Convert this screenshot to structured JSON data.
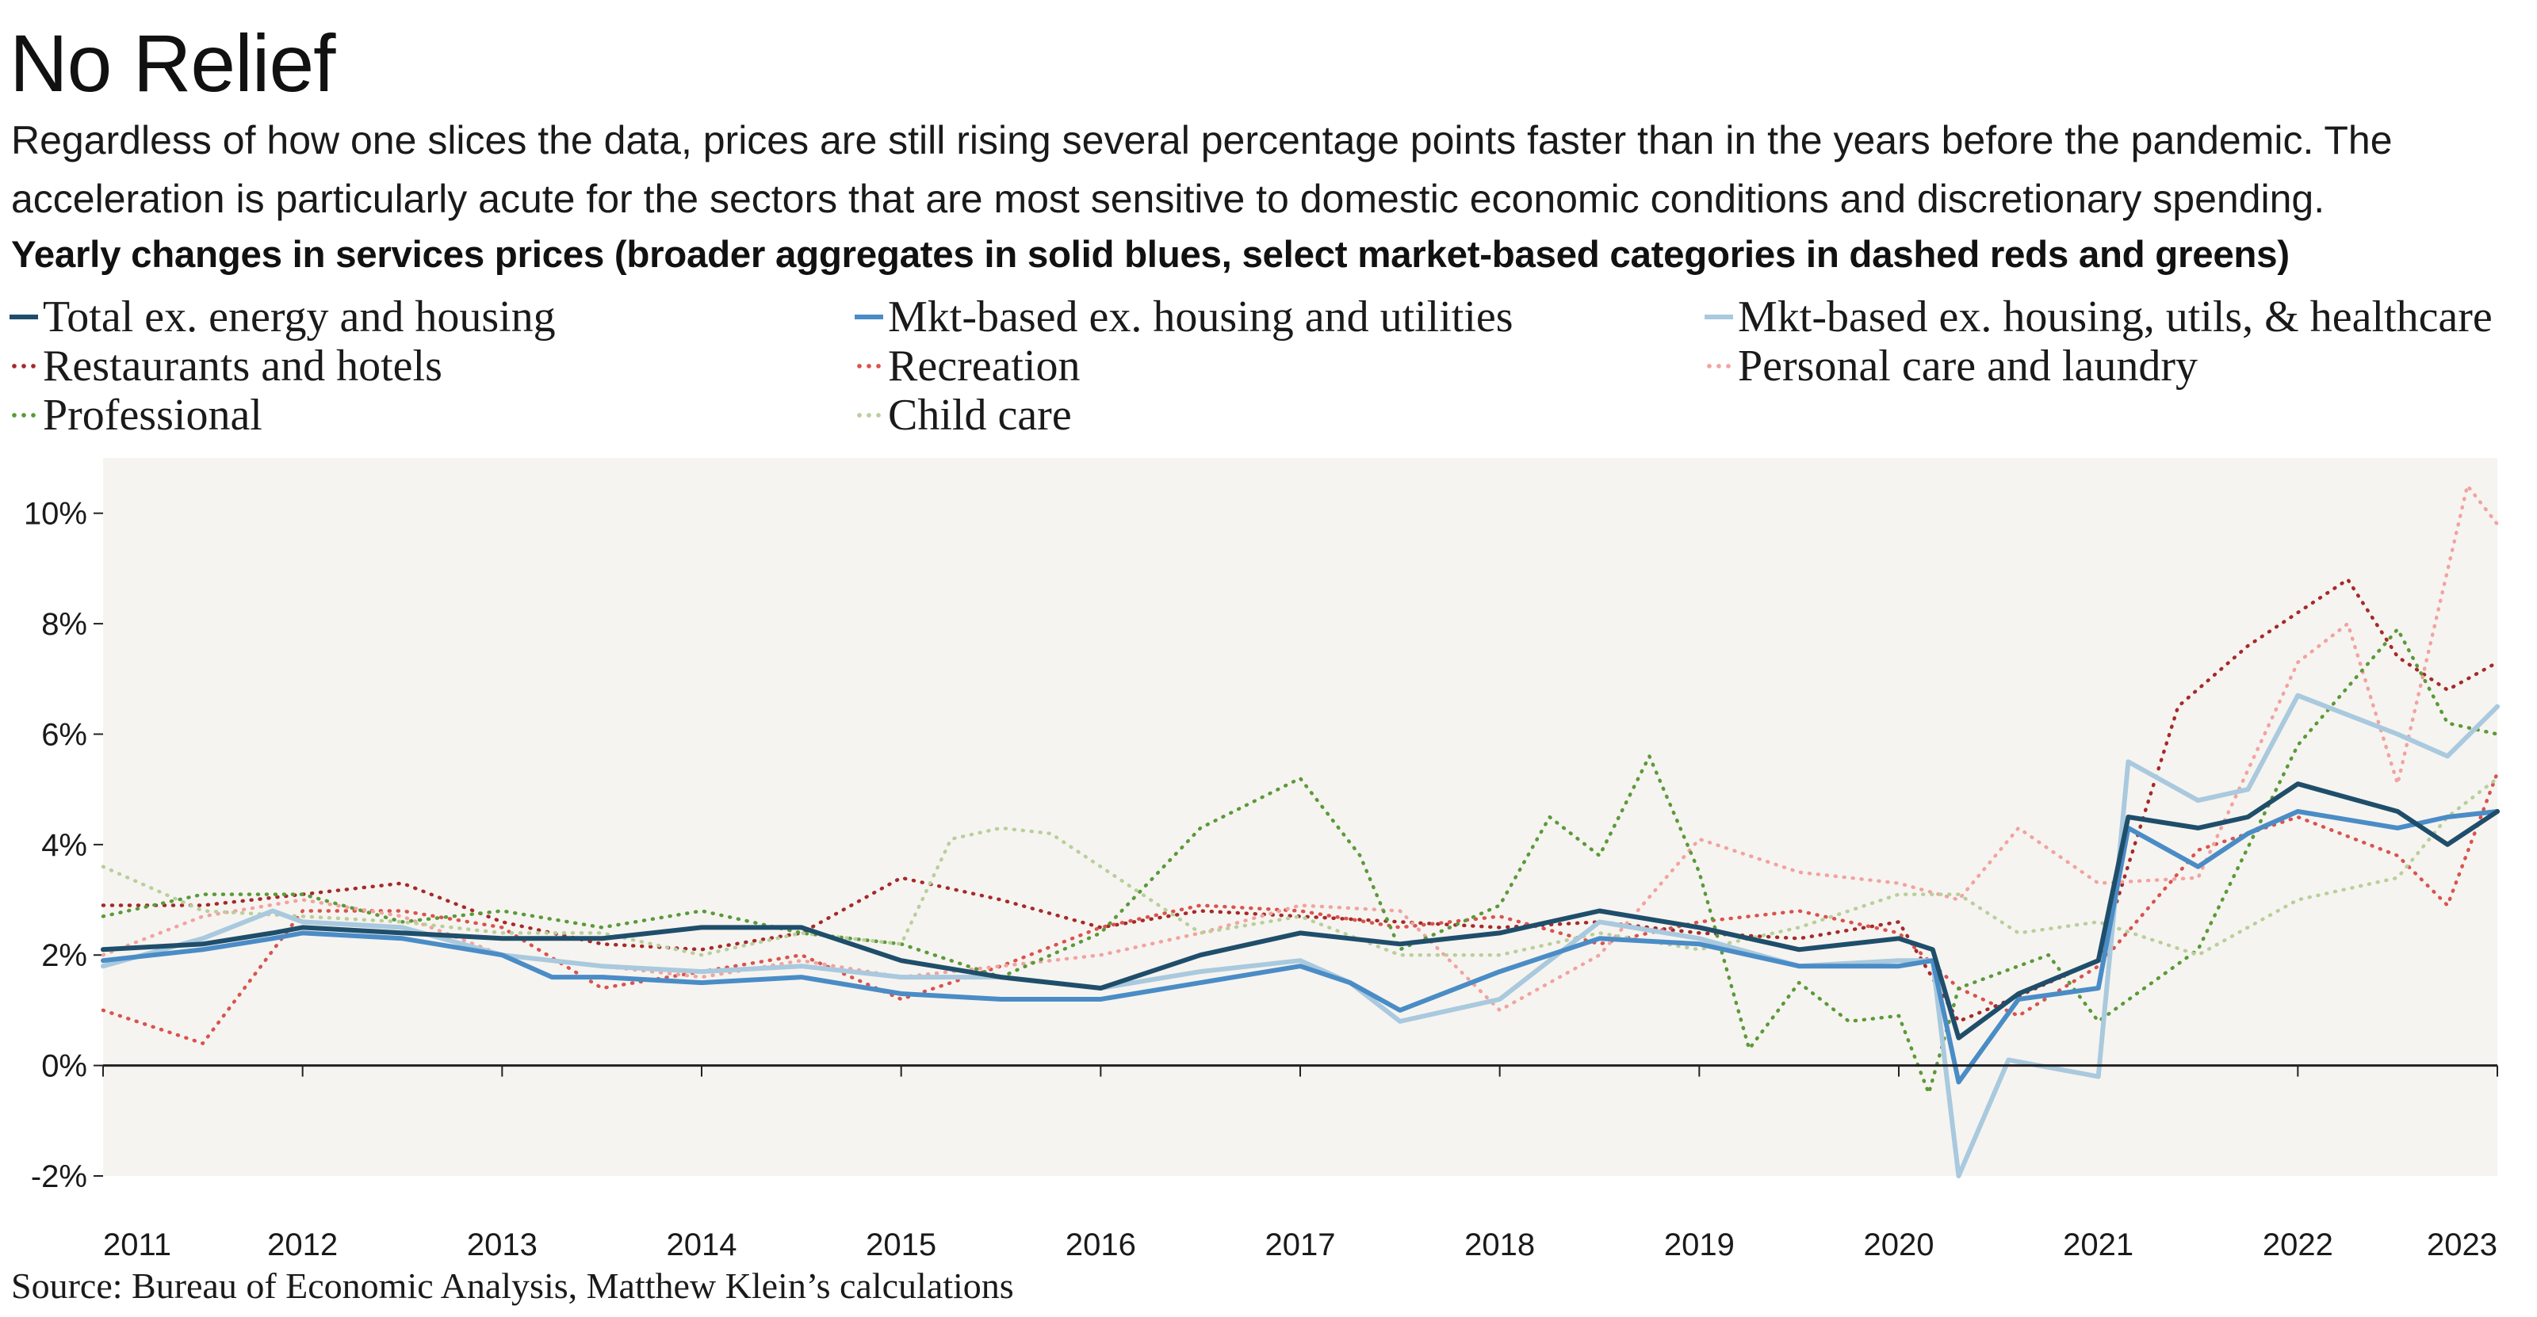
{
  "title": "No Relief",
  "subtitle": "Regardless of how one slices the data, prices are still rising several percentage points faster than in the years before the pandemic. The acceleration is particularly acute for the sectors that are most sensitive to domestic economic conditions and discretionary spending.",
  "source": "Source: Bureau of Economic Analysis, Matthew Klein’s calculations",
  "chart_data": {
    "type": "line",
    "title": "Yearly changes in services prices (broader aggregates in solid blues, select market-based categories in dashed reds and greens)",
    "xlabel": "",
    "ylabel": "",
    "xlim": [
      2011,
      2023
    ],
    "ylim": [
      -2,
      11
    ],
    "x_ticks": [
      "2011",
      "2012",
      "2013",
      "2014",
      "2015",
      "2016",
      "2017",
      "2018",
      "2019",
      "2020",
      "2021",
      "2022",
      "2023"
    ],
    "y_ticks": [
      "-2%",
      "0%",
      "2%",
      "4%",
      "6%",
      "8%",
      "10%"
    ],
    "y_tick_values": [
      -2,
      0,
      2,
      4,
      6,
      8,
      10
    ],
    "grid": false,
    "background": "#f6f4f0",
    "legend_placement": "top",
    "series": [
      {
        "name": "Total ex. energy and housing",
        "color": "#1f4e6b",
        "style": "solid",
        "points": [
          [
            2011.0,
            2.1
          ],
          [
            2011.5,
            2.2
          ],
          [
            2011.85,
            2.4
          ],
          [
            2012.0,
            2.5
          ],
          [
            2012.5,
            2.4
          ],
          [
            2013.0,
            2.3
          ],
          [
            2013.5,
            2.3
          ],
          [
            2014.0,
            2.5
          ],
          [
            2014.5,
            2.5
          ],
          [
            2015.0,
            1.9
          ],
          [
            2015.5,
            1.6
          ],
          [
            2016.0,
            1.4
          ],
          [
            2016.5,
            2.0
          ],
          [
            2017.0,
            2.4
          ],
          [
            2017.5,
            2.2
          ],
          [
            2018.0,
            2.4
          ],
          [
            2018.5,
            2.8
          ],
          [
            2019.0,
            2.5
          ],
          [
            2019.5,
            2.1
          ],
          [
            2020.0,
            2.3
          ],
          [
            2020.17,
            2.1
          ],
          [
            2020.3,
            0.5
          ],
          [
            2020.6,
            1.3
          ],
          [
            2021.0,
            1.9
          ],
          [
            2021.15,
            4.5
          ],
          [
            2021.5,
            4.3
          ],
          [
            2021.75,
            4.5
          ],
          [
            2022.0,
            5.1
          ],
          [
            2022.5,
            4.6
          ],
          [
            2022.75,
            4.0
          ],
          [
            2023.0,
            4.6
          ]
        ]
      },
      {
        "name": "Mkt-based ex. housing and utilities",
        "color": "#4a8cc6",
        "style": "solid",
        "points": [
          [
            2011.0,
            1.9
          ],
          [
            2011.5,
            2.1
          ],
          [
            2011.85,
            2.3
          ],
          [
            2012.0,
            2.4
          ],
          [
            2012.5,
            2.3
          ],
          [
            2013.0,
            2.0
          ],
          [
            2013.25,
            1.6
          ],
          [
            2013.5,
            1.6
          ],
          [
            2014.0,
            1.5
          ],
          [
            2014.5,
            1.6
          ],
          [
            2015.0,
            1.3
          ],
          [
            2015.5,
            1.2
          ],
          [
            2016.0,
            1.2
          ],
          [
            2016.5,
            1.5
          ],
          [
            2017.0,
            1.8
          ],
          [
            2017.25,
            1.5
          ],
          [
            2017.5,
            1.0
          ],
          [
            2018.0,
            1.7
          ],
          [
            2018.5,
            2.3
          ],
          [
            2019.0,
            2.2
          ],
          [
            2019.5,
            1.8
          ],
          [
            2020.0,
            1.8
          ],
          [
            2020.17,
            1.9
          ],
          [
            2020.3,
            -0.3
          ],
          [
            2020.6,
            1.2
          ],
          [
            2021.0,
            1.4
          ],
          [
            2021.15,
            4.3
          ],
          [
            2021.5,
            3.6
          ],
          [
            2021.75,
            4.2
          ],
          [
            2022.0,
            4.6
          ],
          [
            2022.5,
            4.3
          ],
          [
            2022.75,
            4.5
          ],
          [
            2023.0,
            4.6
          ]
        ]
      },
      {
        "name": "Mkt-based ex. housing, utils, & healthcare",
        "color": "#a9c9de",
        "style": "solid",
        "points": [
          [
            2011.0,
            1.8
          ],
          [
            2011.5,
            2.3
          ],
          [
            2011.85,
            2.8
          ],
          [
            2012.0,
            2.6
          ],
          [
            2012.5,
            2.5
          ],
          [
            2013.0,
            2.0
          ],
          [
            2013.5,
            1.8
          ],
          [
            2014.0,
            1.7
          ],
          [
            2014.5,
            1.8
          ],
          [
            2015.0,
            1.6
          ],
          [
            2015.5,
            1.6
          ],
          [
            2016.0,
            1.4
          ],
          [
            2016.5,
            1.7
          ],
          [
            2017.0,
            1.9
          ],
          [
            2017.25,
            1.5
          ],
          [
            2017.5,
            0.8
          ],
          [
            2018.0,
            1.2
          ],
          [
            2018.5,
            2.6
          ],
          [
            2019.0,
            2.3
          ],
          [
            2019.5,
            1.8
          ],
          [
            2020.0,
            1.9
          ],
          [
            2020.17,
            1.9
          ],
          [
            2020.3,
            -2.0
          ],
          [
            2020.55,
            0.1
          ],
          [
            2021.0,
            -0.2
          ],
          [
            2021.15,
            5.5
          ],
          [
            2021.5,
            4.8
          ],
          [
            2021.75,
            5.0
          ],
          [
            2022.0,
            6.7
          ],
          [
            2022.5,
            6.0
          ],
          [
            2022.75,
            5.6
          ],
          [
            2023.0,
            6.5
          ]
        ]
      },
      {
        "name": "Restaurants and hotels",
        "color": "#a52a2a",
        "style": "dotted",
        "points": [
          [
            2011.0,
            2.9
          ],
          [
            2011.5,
            2.9
          ],
          [
            2012.0,
            3.1
          ],
          [
            2012.5,
            3.3
          ],
          [
            2013.0,
            2.6
          ],
          [
            2013.5,
            2.2
          ],
          [
            2014.0,
            2.1
          ],
          [
            2014.5,
            2.4
          ],
          [
            2015.0,
            3.4
          ],
          [
            2015.5,
            3.0
          ],
          [
            2016.0,
            2.5
          ],
          [
            2016.5,
            2.8
          ],
          [
            2017.0,
            2.7
          ],
          [
            2017.5,
            2.6
          ],
          [
            2018.0,
            2.5
          ],
          [
            2018.5,
            2.6
          ],
          [
            2019.0,
            2.4
          ],
          [
            2019.5,
            2.3
          ],
          [
            2020.0,
            2.6
          ],
          [
            2020.3,
            0.8
          ],
          [
            2020.5,
            1.1
          ],
          [
            2021.0,
            1.9
          ],
          [
            2021.4,
            6.5
          ],
          [
            2021.75,
            7.6
          ],
          [
            2022.0,
            8.2
          ],
          [
            2022.25,
            8.8
          ],
          [
            2022.5,
            7.4
          ],
          [
            2022.75,
            6.8
          ],
          [
            2023.0,
            7.3
          ]
        ]
      },
      {
        "name": "Recreation",
        "color": "#d9534f",
        "style": "dotted",
        "points": [
          [
            2011.0,
            1.0
          ],
          [
            2011.5,
            0.4
          ],
          [
            2012.0,
            2.8
          ],
          [
            2012.5,
            2.8
          ],
          [
            2013.0,
            2.5
          ],
          [
            2013.5,
            1.4
          ],
          [
            2014.0,
            1.7
          ],
          [
            2014.5,
            2.0
          ],
          [
            2015.0,
            1.2
          ],
          [
            2015.5,
            1.8
          ],
          [
            2016.0,
            2.5
          ],
          [
            2016.5,
            2.9
          ],
          [
            2017.0,
            2.8
          ],
          [
            2017.5,
            2.5
          ],
          [
            2018.0,
            2.7
          ],
          [
            2018.5,
            2.2
          ],
          [
            2019.0,
            2.6
          ],
          [
            2019.5,
            2.8
          ],
          [
            2020.0,
            2.4
          ],
          [
            2020.3,
            1.4
          ],
          [
            2020.6,
            0.9
          ],
          [
            2021.0,
            1.8
          ],
          [
            2021.5,
            3.9
          ],
          [
            2022.0,
            4.5
          ],
          [
            2022.5,
            3.8
          ],
          [
            2022.75,
            2.9
          ],
          [
            2023.0,
            5.3
          ]
        ]
      },
      {
        "name": "Personal care and laundry",
        "color": "#f1a3a0",
        "style": "dotted",
        "points": [
          [
            2011.0,
            2.0
          ],
          [
            2011.5,
            2.7
          ],
          [
            2012.0,
            3.0
          ],
          [
            2012.5,
            2.7
          ],
          [
            2013.0,
            2.0
          ],
          [
            2013.5,
            1.8
          ],
          [
            2014.0,
            1.6
          ],
          [
            2014.5,
            1.9
          ],
          [
            2015.0,
            1.6
          ],
          [
            2015.5,
            1.8
          ],
          [
            2016.0,
            2.0
          ],
          [
            2016.5,
            2.4
          ],
          [
            2017.0,
            2.9
          ],
          [
            2017.5,
            2.8
          ],
          [
            2018.0,
            1.0
          ],
          [
            2018.5,
            2.0
          ],
          [
            2019.0,
            4.1
          ],
          [
            2019.5,
            3.5
          ],
          [
            2020.0,
            3.3
          ],
          [
            2020.3,
            3.0
          ],
          [
            2020.6,
            4.3
          ],
          [
            2021.0,
            3.3
          ],
          [
            2021.5,
            3.4
          ],
          [
            2022.0,
            7.3
          ],
          [
            2022.25,
            8.0
          ],
          [
            2022.5,
            5.1
          ],
          [
            2022.85,
            10.5
          ],
          [
            2023.0,
            9.8
          ]
        ]
      },
      {
        "name": "Professional",
        "color": "#5a9a3a",
        "style": "dotted",
        "points": [
          [
            2011.0,
            2.7
          ],
          [
            2011.5,
            3.1
          ],
          [
            2012.0,
            3.1
          ],
          [
            2012.5,
            2.6
          ],
          [
            2013.0,
            2.8
          ],
          [
            2013.5,
            2.5
          ],
          [
            2014.0,
            2.8
          ],
          [
            2014.5,
            2.4
          ],
          [
            2015.0,
            2.2
          ],
          [
            2015.5,
            1.6
          ],
          [
            2016.0,
            2.4
          ],
          [
            2016.5,
            4.3
          ],
          [
            2017.0,
            5.2
          ],
          [
            2017.3,
            3.8
          ],
          [
            2017.5,
            2.1
          ],
          [
            2018.0,
            2.9
          ],
          [
            2018.25,
            4.5
          ],
          [
            2018.5,
            3.8
          ],
          [
            2018.75,
            5.6
          ],
          [
            2019.0,
            3.5
          ],
          [
            2019.25,
            0.3
          ],
          [
            2019.5,
            1.5
          ],
          [
            2019.75,
            0.8
          ],
          [
            2020.0,
            0.9
          ],
          [
            2020.15,
            -0.5
          ],
          [
            2020.3,
            1.4
          ],
          [
            2020.75,
            2.0
          ],
          [
            2021.0,
            0.8
          ],
          [
            2021.5,
            2.1
          ],
          [
            2022.0,
            5.8
          ],
          [
            2022.5,
            7.9
          ],
          [
            2022.75,
            6.2
          ],
          [
            2023.0,
            6.0
          ]
        ]
      },
      {
        "name": "Child care",
        "color": "#b8cf9b",
        "style": "dotted",
        "points": [
          [
            2011.0,
            3.6
          ],
          [
            2011.5,
            2.8
          ],
          [
            2012.0,
            2.7
          ],
          [
            2012.5,
            2.6
          ],
          [
            2013.0,
            2.4
          ],
          [
            2013.5,
            2.4
          ],
          [
            2014.0,
            2.0
          ],
          [
            2014.5,
            2.4
          ],
          [
            2015.0,
            2.2
          ],
          [
            2015.25,
            4.1
          ],
          [
            2015.5,
            4.3
          ],
          [
            2015.75,
            4.2
          ],
          [
            2016.0,
            3.6
          ],
          [
            2016.5,
            2.4
          ],
          [
            2017.0,
            2.7
          ],
          [
            2017.5,
            2.0
          ],
          [
            2018.0,
            2.0
          ],
          [
            2018.5,
            2.4
          ],
          [
            2019.0,
            2.1
          ],
          [
            2019.5,
            2.5
          ],
          [
            2020.0,
            3.1
          ],
          [
            2020.3,
            3.1
          ],
          [
            2020.6,
            2.4
          ],
          [
            2021.0,
            2.6
          ],
          [
            2021.5,
            2.0
          ],
          [
            2022.0,
            3.0
          ],
          [
            2022.5,
            3.4
          ],
          [
            2022.75,
            4.5
          ],
          [
            2023.0,
            5.2
          ]
        ]
      }
    ]
  }
}
